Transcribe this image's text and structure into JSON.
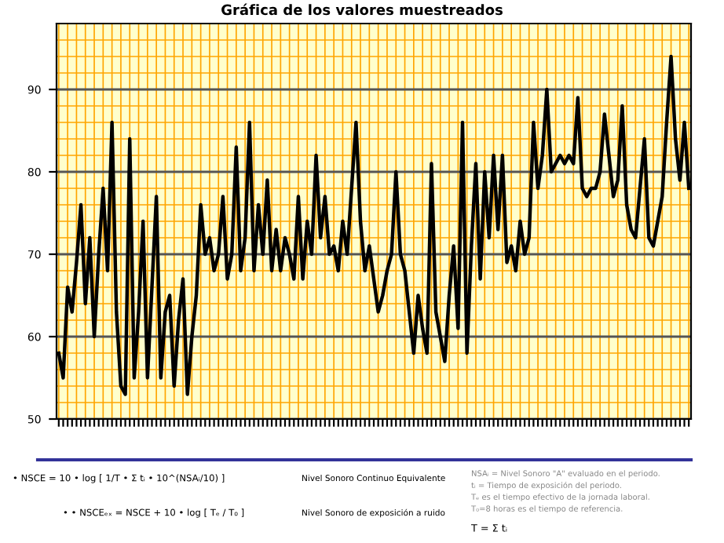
{
  "chart_data": {
    "type": "line",
    "title": "Gráfica de los valores muestreados",
    "categories": [
      null,
      null,
      null,
      null,
      null,
      null,
      null,
      null,
      null,
      null,
      null,
      null,
      null,
      null,
      null,
      null,
      null,
      null,
      null,
      null,
      null,
      null,
      null,
      null,
      null,
      null,
      null,
      null,
      null,
      null,
      null,
      null,
      null,
      null,
      null,
      null,
      null,
      null,
      null,
      null,
      null,
      null,
      null,
      null,
      null,
      null,
      null,
      null,
      null,
      null,
      null,
      null,
      null,
      null,
      null,
      null,
      null,
      null,
      null,
      null,
      null,
      null,
      null,
      null,
      null,
      null,
      null,
      null,
      null,
      null,
      null,
      null,
      null,
      null,
      null,
      null,
      null,
      null,
      null,
      null,
      null,
      null,
      null,
      null,
      null,
      null,
      null,
      null,
      null,
      null,
      null,
      null,
      null,
      null,
      null,
      null,
      null,
      null,
      null,
      null,
      null,
      null,
      null,
      null,
      null,
      null,
      null,
      null,
      null,
      null,
      null,
      null,
      null,
      null,
      null,
      null,
      null,
      null,
      null,
      null,
      null,
      null,
      null,
      null,
      null,
      null,
      null,
      null,
      null,
      null,
      null,
      null,
      null,
      null,
      null,
      null,
      null,
      null,
      null,
      null,
      null,
      null,
      null
    ],
    "series": [
      {
        "color": "#000000",
        "values": [
          58,
          55,
          66,
          63,
          69,
          76,
          64,
          72,
          60,
          70,
          78,
          68,
          86,
          63,
          54,
          53,
          84,
          55,
          63,
          74,
          55,
          66,
          77,
          55,
          63,
          65,
          54,
          62,
          67,
          53,
          60,
          65,
          76,
          70,
          72,
          68,
          70,
          77,
          67,
          70,
          83,
          68,
          72,
          86,
          68,
          76,
          70,
          79,
          68,
          73,
          68,
          72,
          70,
          67,
          77,
          67,
          74,
          70,
          82,
          72,
          77,
          70,
          71,
          68,
          74,
          70,
          78,
          86,
          74,
          68,
          71,
          67,
          63,
          65,
          68,
          70,
          80,
          70,
          68,
          63,
          58,
          65,
          61,
          58,
          81,
          63,
          60,
          57,
          65,
          71,
          61,
          86,
          58,
          71,
          81,
          67,
          80,
          72,
          82,
          73,
          82,
          69,
          71,
          68,
          74,
          70,
          72,
          86,
          78,
          82,
          90,
          80,
          81,
          82,
          81,
          82,
          81,
          89,
          78,
          77,
          78,
          78,
          80,
          87,
          82,
          77,
          79,
          88,
          76,
          73,
          72,
          78,
          84,
          72,
          71,
          74,
          77,
          86,
          94,
          84,
          79,
          86,
          78
        ]
      }
    ],
    "ylim": [
      50,
      98
    ],
    "yticks": [
      50,
      60,
      70,
      80,
      90
    ],
    "grid": true,
    "tick_labels": "y",
    "marker": "none",
    "line_style": "solid",
    "annotations": [
      "• NSCE = 10 • log [ 1/T • Σ tᵢ • 10^(NSAᵢ/10) ]",
      "Nivel Sonoro Continuo Equivalente",
      "• • NSCEₑₓ = NSCE + 10 • log [ Tₑ / T₀ ]",
      "Nivel Sonoro de exposición a ruido",
      "NSAᵢ = Nivel Sonoro \"A\" evaluado en el periodo.",
      "tᵢ = Tiempo de exposición del periodo.",
      "Tₑ es el tiempo efectivo de la jornada laboral.",
      "T₀=8 horas es el tiempo de referencia.",
      "T = Σ tᵢ"
    ]
  }
}
